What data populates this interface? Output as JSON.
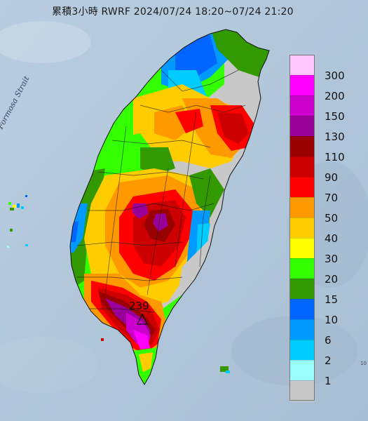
{
  "title": "累積3小時 RWRF 2024/07/24 18:20~07/24 21:20",
  "strait_label": "Formosa Strait",
  "max_value_label": "239",
  "max_marker_icon": "triangle-marker-icon",
  "legend": {
    "items": [
      {
        "label": "300",
        "color": "#ffc6fd"
      },
      {
        "label": "200",
        "color": "#ff00ff"
      },
      {
        "label": "150",
        "color": "#cc00cc"
      },
      {
        "label": "130",
        "color": "#990099"
      },
      {
        "label": "110",
        "color": "#990000"
      },
      {
        "label": "90",
        "color": "#cc0000"
      },
      {
        "label": "70",
        "color": "#ff0000"
      },
      {
        "label": "50",
        "color": "#ff9900"
      },
      {
        "label": "40",
        "color": "#ffcc00"
      },
      {
        "label": "30",
        "color": "#ffff00"
      },
      {
        "label": "20",
        "color": "#33ff00"
      },
      {
        "label": "15",
        "color": "#339900"
      },
      {
        "label": "10",
        "color": "#0066ff"
      },
      {
        "label": "6",
        "color": "#0099ff"
      },
      {
        "label": "2",
        "color": "#00ccff"
      },
      {
        "label": "1",
        "color": "#99ffff"
      },
      {
        "label": "",
        "color": "#c8c8c8"
      }
    ]
  },
  "colors": {
    "ocean": "#b7c9da",
    "land_low": "#c8c8c8"
  }
}
